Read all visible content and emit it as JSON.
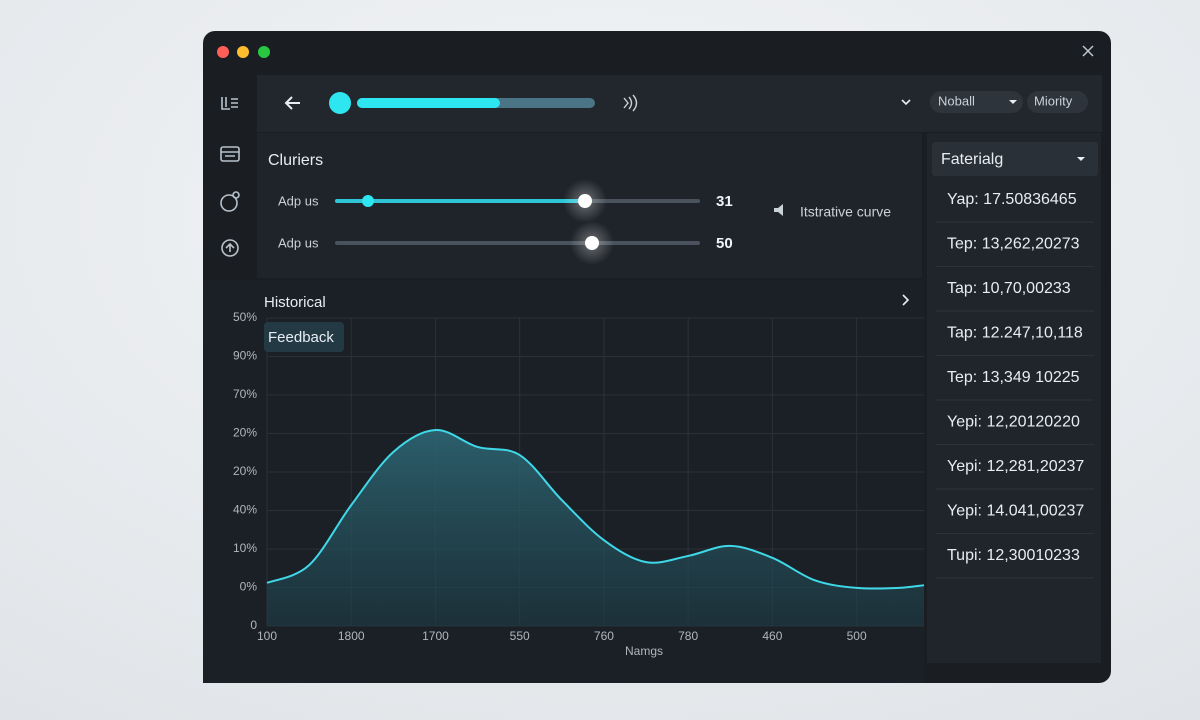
{
  "top_bar": {
    "dropdown": "Noball",
    "button": "Miority"
  },
  "controls": {
    "title": "Cluriers",
    "sliders": [
      {
        "label": "Adp us",
        "value": "31"
      },
      {
        "label": "Adp us",
        "value": "50"
      }
    ],
    "legend": "Itstrative curve"
  },
  "list": {
    "header": "Faterialg",
    "items": [
      "Yap: 17.50836465",
      "Tep: 13,262,20273",
      "Tap: 10,70,00233",
      "Tap: 12.247,10,118",
      "Tep: 13,349 10225",
      "Yepi: 12,20120220",
      "Yepi: 12,281,20237",
      "Yepi: 14.041,00237",
      "Tupi: 12,30010233"
    ]
  },
  "chart_data": {
    "type": "line",
    "title": "Historical",
    "annotation": "Feedback",
    "x_label": "Namgs",
    "color": "#3fd8e8",
    "grid": true,
    "x": [
      0,
      0.5,
      1,
      1.5,
      2,
      2.5,
      3,
      3.5,
      4,
      4.5,
      5,
      5.5,
      6,
      6.5,
      7,
      7.5,
      7.8
    ],
    "values": [
      1.12,
      1.58,
      3.14,
      4.52,
      5.09,
      4.65,
      4.44,
      3.27,
      2.23,
      1.66,
      1.82,
      2.08,
      1.77,
      1.19,
      0.99,
      0.99,
      1.06
    ],
    "xlim": [
      0,
      7.8
    ],
    "ylim": [
      0,
      8
    ],
    "xticks": [
      {
        "value": 0,
        "label": "100"
      },
      {
        "value": 1,
        "label": "1800"
      },
      {
        "value": 2,
        "label": "1700"
      },
      {
        "value": 3,
        "label": "550"
      },
      {
        "value": 4,
        "label": "760"
      },
      {
        "value": 5,
        "label": "780"
      },
      {
        "value": 6,
        "label": "460"
      },
      {
        "value": 7,
        "label": "500"
      }
    ],
    "yticks": [
      {
        "value": 0,
        "label": "0"
      },
      {
        "value": 1,
        "label": "0%"
      },
      {
        "value": 2,
        "label": "10%"
      },
      {
        "value": 3,
        "label": "40%"
      },
      {
        "value": 4,
        "label": "20%"
      },
      {
        "value": 5,
        "label": "20%"
      },
      {
        "value": 6,
        "label": "70%"
      },
      {
        "value": 7,
        "label": "90%"
      },
      {
        "value": 8,
        "label": "50%"
      }
    ]
  }
}
